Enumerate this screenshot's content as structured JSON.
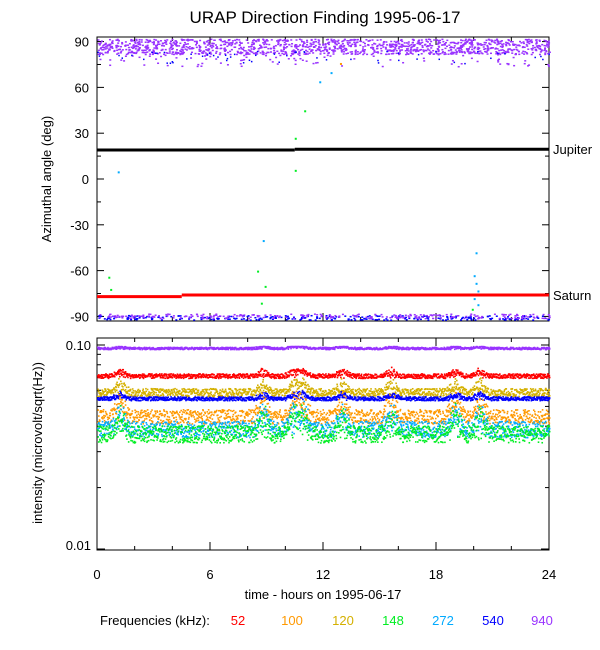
{
  "title": "URAP Direction Finding  1995-06-17",
  "xlabel": "time - hours on 1995-06-17",
  "freq_legend": {
    "label": "Frequencies (kHz):",
    "items": [
      {
        "text": "52",
        "color": "#ff0000"
      },
      {
        "text": "100",
        "color": "#ff9900"
      },
      {
        "text": "120",
        "color": "#d4b000"
      },
      {
        "text": "148",
        "color": "#00ee22"
      },
      {
        "text": "272",
        "color": "#00aaff"
      },
      {
        "text": "540",
        "color": "#0000ff"
      },
      {
        "text": "940",
        "color": "#9933ff"
      }
    ]
  },
  "chart_data": [
    {
      "type": "scatter",
      "title": "URAP Direction Finding  1995-06-17",
      "xlabel": "",
      "ylabel": "Azimuthal angle (deg)",
      "xlim": [
        0,
        24
      ],
      "ylim": [
        -93,
        93
      ],
      "x_ticks": [
        0,
        6,
        12,
        18,
        24
      ],
      "y_ticks": [
        90,
        60,
        30,
        0,
        -30,
        -60,
        -90
      ],
      "y_tick_labels": [
        "90",
        "60",
        "30",
        "0",
        "-30",
        "-60",
        "-90"
      ],
      "reference_lines": [
        {
          "label": "Jupiter",
          "color": "#000000",
          "segments": [
            {
              "x": [
                0,
                10.5
              ],
              "y": 19
            },
            {
              "x": [
                10.5,
                24
              ],
              "y": 19.5
            }
          ]
        },
        {
          "label": "Saturn",
          "color": "#ff0000",
          "segments": [
            {
              "x": [
                0,
                4.5
              ],
              "y": -77
            },
            {
              "x": [
                4.5,
                24
              ],
              "y": -76
            }
          ]
        }
      ],
      "series": [
        {
          "color": "#9933ff",
          "band": [
            82,
            92
          ],
          "x": [
            0,
            24
          ],
          "note_values": "dense band near 86"
        },
        {
          "color": "#0000ff",
          "band": [
            -92,
            -89
          ],
          "x": [
            0,
            24
          ]
        },
        {
          "color": "#9933ff",
          "band": [
            -91,
            -88
          ],
          "x": [
            0,
            24
          ]
        }
      ],
      "scattered_points": [
        {
          "x": 0.6,
          "y": -64,
          "color": "#00ee22"
        },
        {
          "x": 0.7,
          "y": -72,
          "color": "#00ee22"
        },
        {
          "x": 1.1,
          "y": 5,
          "color": "#00aaff"
        },
        {
          "x": 8.5,
          "y": -60,
          "color": "#00ee22"
        },
        {
          "x": 8.8,
          "y": -40,
          "color": "#00aaff"
        },
        {
          "x": 8.9,
          "y": -70,
          "color": "#00ee22"
        },
        {
          "x": 9.0,
          "y": -75,
          "color": "#00ee22"
        },
        {
          "x": 8.7,
          "y": -81,
          "color": "#00ee22"
        },
        {
          "x": 10.5,
          "y": 27,
          "color": "#00ee22"
        },
        {
          "x": 10.5,
          "y": 6,
          "color": "#00ee22"
        },
        {
          "x": 11.0,
          "y": 45,
          "color": "#00ee22"
        },
        {
          "x": 11.8,
          "y": 64,
          "color": "#00aaff"
        },
        {
          "x": 12.4,
          "y": 70,
          "color": "#00aaff"
        },
        {
          "x": 12.9,
          "y": 76,
          "color": "#ff9900"
        },
        {
          "x": 15.6,
          "y": 20,
          "color": "#0000ff"
        },
        {
          "x": 20.1,
          "y": -48,
          "color": "#00aaff"
        },
        {
          "x": 20.0,
          "y": -63,
          "color": "#00aaff"
        },
        {
          "x": 20.1,
          "y": -68,
          "color": "#00aaff"
        },
        {
          "x": 20.2,
          "y": -73,
          "color": "#00aaff"
        },
        {
          "x": 20.0,
          "y": -78,
          "color": "#00aaff"
        },
        {
          "x": 20.2,
          "y": -82,
          "color": "#00aaff"
        },
        {
          "x": 19.9,
          "y": -85,
          "color": "#00ee22"
        }
      ]
    },
    {
      "type": "line",
      "xlabel": "time - hours on 1995-06-17",
      "ylabel": "intensity (microvolt/sqrt(Hz))",
      "xlim": [
        0,
        24
      ],
      "ylim": [
        0.01,
        0.1
      ],
      "yscale": "log",
      "x_ticks": [
        0,
        6,
        12,
        18,
        24
      ],
      "x_tick_labels": [
        "0",
        "6",
        "12",
        "18",
        "24"
      ],
      "y_tick_labels": [
        "0.10",
        "0.01"
      ],
      "series": [
        {
          "name": "940",
          "color": "#9933ff",
          "level": 0.097,
          "noise": 0.004
        },
        {
          "name": "52",
          "color": "#ff0000",
          "level": 0.071,
          "noise": 0.006
        },
        {
          "name": "120",
          "color": "#d4b000",
          "level": 0.059,
          "noise": 0.009
        },
        {
          "name": "540",
          "color": "#0000ff",
          "level": 0.055,
          "noise": 0.004
        },
        {
          "name": "100",
          "color": "#ff9900",
          "level": 0.045,
          "noise": 0.012
        },
        {
          "name": "272",
          "color": "#00aaff",
          "level": 0.039,
          "noise": 0.012
        },
        {
          "name": "148",
          "color": "#00ee22",
          "level": 0.037,
          "noise": 0.012
        }
      ]
    }
  ]
}
